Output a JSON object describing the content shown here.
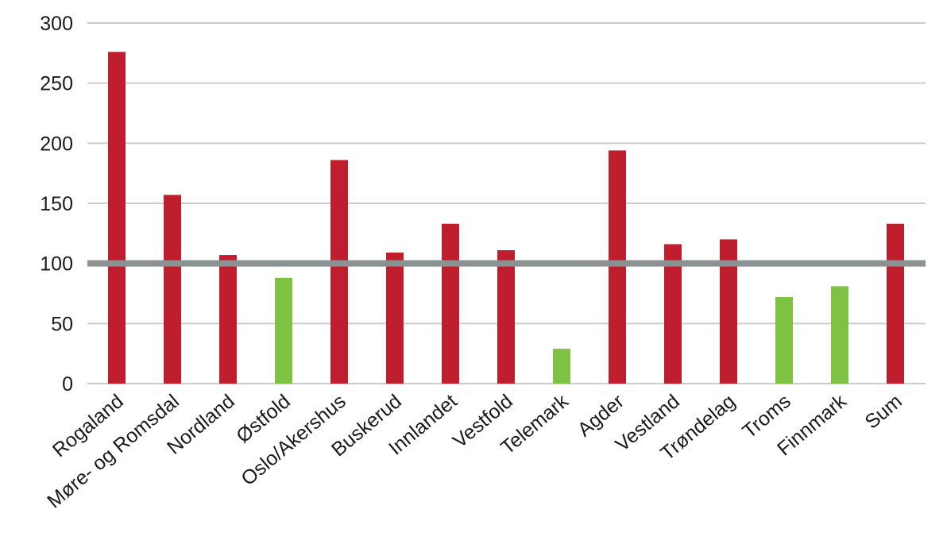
{
  "chart_data": {
    "type": "bar",
    "categories": [
      "Rogaland",
      "Møre- og Romsdal",
      "Nordland",
      "Østfold",
      "Oslo/Akershus",
      "Buskerud",
      "Innlandet",
      "Vestfold",
      "Telemark",
      "Agder",
      "Vestland",
      "Trøndelag",
      "Troms",
      "Finnmark",
      "Sum"
    ],
    "values": [
      276,
      157,
      107,
      88,
      186,
      109,
      133,
      111,
      29,
      194,
      116,
      120,
      72,
      81,
      133
    ],
    "ylim": [
      0,
      300
    ],
    "yticks": [
      0,
      50,
      100,
      150,
      200,
      250,
      300
    ],
    "title": "",
    "xlabel": "",
    "ylabel": "",
    "grid": true,
    "reference_line": {
      "value": 100,
      "color": "#8c9191"
    },
    "colors": {
      "above_reference": "#be1e2d",
      "below_reference": "#7dc242",
      "gridline": "#cccccc"
    }
  }
}
